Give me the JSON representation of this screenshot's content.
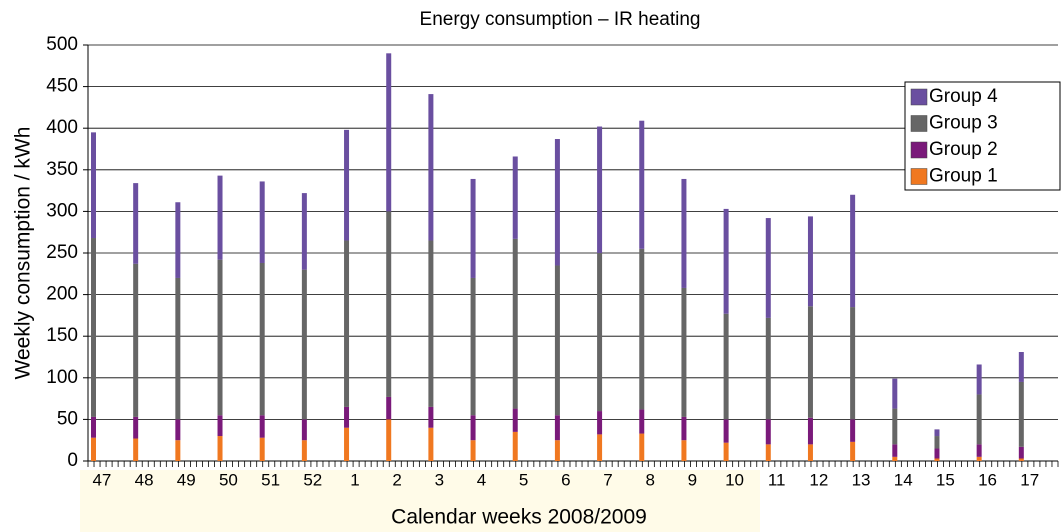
{
  "chart_data": {
    "type": "stacked_bar",
    "title": "Energy consumption – IR heating",
    "x_label": "Calendar weeks 2008/2009",
    "y_label": "Weekly consumption / kWh",
    "categories": [
      "47",
      "48",
      "49",
      "50",
      "51",
      "52",
      "1",
      "2",
      "3",
      "4",
      "5",
      "6",
      "7",
      "8",
      "9",
      "10",
      "11",
      "12",
      "13",
      "14",
      "15",
      "16",
      "17"
    ],
    "series": [
      {
        "name": "Group 1",
        "color": "#f07820",
        "values": [
          28,
          27,
          25,
          30,
          28,
          25,
          40,
          50,
          40,
          25,
          35,
          25,
          32,
          33,
          25,
          22,
          20,
          20,
          23,
          5,
          3,
          5,
          3
        ]
      },
      {
        "name": "Group 2",
        "color": "#7a1a7a",
        "values": [
          25,
          26,
          25,
          25,
          27,
          25,
          25,
          27,
          25,
          30,
          28,
          30,
          28,
          29,
          28,
          28,
          30,
          32,
          27,
          15,
          12,
          15,
          14
        ]
      },
      {
        "name": "Group 3",
        "color": "#666666",
        "values": [
          215,
          184,
          170,
          187,
          183,
          180,
          200,
          223,
          200,
          165,
          204,
          180,
          190,
          193,
          155,
          127,
          122,
          134,
          135,
          43,
          15,
          60,
          78
        ]
      },
      {
        "name": "Group 4",
        "color": "#6a4fa0",
        "values": [
          127,
          97,
          91,
          101,
          98,
          92,
          133,
          190,
          176,
          119,
          99,
          152,
          152,
          154,
          131,
          126,
          120,
          108,
          135,
          36,
          8,
          36,
          36
        ]
      }
    ],
    "ylim": [
      0,
      500
    ],
    "yticks": [
      0,
      50,
      100,
      150,
      200,
      250,
      300,
      350,
      400,
      450,
      500
    ],
    "grid": true,
    "legend": "upper right"
  }
}
